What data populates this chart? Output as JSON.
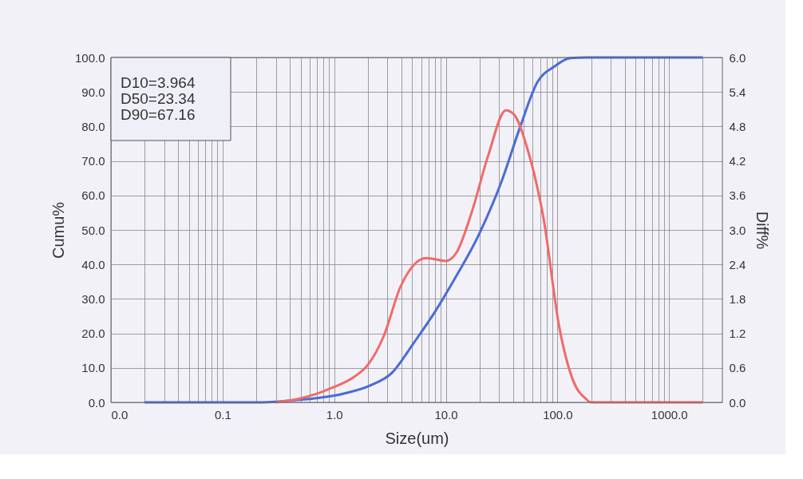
{
  "chart_data": {
    "type": "line",
    "xlabel": "Size(um)",
    "ylabel": "Cumu%",
    "y2label": "Diff%",
    "annotations": [
      "D10=3.964",
      "D50=23.34",
      "D90=67.16"
    ],
    "log": "x",
    "grid": true,
    "marker": "none",
    "line_style": "solid",
    "xlim": [
      0.01,
      3000
    ],
    "xticks": [
      {
        "value": 0.01,
        "label": "0.0"
      },
      {
        "value": 0.02,
        "label": null
      },
      {
        "value": 0.03,
        "label": null
      },
      {
        "value": 0.04,
        "label": null
      },
      {
        "value": 0.05,
        "label": null
      },
      {
        "value": 0.06,
        "label": null
      },
      {
        "value": 0.07,
        "label": null
      },
      {
        "value": 0.08,
        "label": null
      },
      {
        "value": 0.09,
        "label": null
      },
      {
        "value": 0.1,
        "label": "0.1"
      },
      {
        "value": 0.2,
        "label": null
      },
      {
        "value": 0.3,
        "label": null
      },
      {
        "value": 0.4,
        "label": null
      },
      {
        "value": 0.5,
        "label": null
      },
      {
        "value": 0.6,
        "label": null
      },
      {
        "value": 0.7,
        "label": null
      },
      {
        "value": 0.8,
        "label": null
      },
      {
        "value": 0.9,
        "label": null
      },
      {
        "value": 1,
        "label": "1.0"
      },
      {
        "value": 2,
        "label": null
      },
      {
        "value": 3,
        "label": null
      },
      {
        "value": 4,
        "label": null
      },
      {
        "value": 5,
        "label": null
      },
      {
        "value": 6,
        "label": null
      },
      {
        "value": 7,
        "label": null
      },
      {
        "value": 8,
        "label": null
      },
      {
        "value": 9,
        "label": null
      },
      {
        "value": 10,
        "label": "10.0"
      },
      {
        "value": 20,
        "label": null
      },
      {
        "value": 30,
        "label": null
      },
      {
        "value": 40,
        "label": null
      },
      {
        "value": 50,
        "label": null
      },
      {
        "value": 60,
        "label": null
      },
      {
        "value": 70,
        "label": null
      },
      {
        "value": 80,
        "label": null
      },
      {
        "value": 90,
        "label": null
      },
      {
        "value": 100,
        "label": "100.0"
      },
      {
        "value": 200,
        "label": null
      },
      {
        "value": 300,
        "label": null
      },
      {
        "value": 400,
        "label": null
      },
      {
        "value": 500,
        "label": null
      },
      {
        "value": 600,
        "label": null
      },
      {
        "value": 700,
        "label": null
      },
      {
        "value": 800,
        "label": null
      },
      {
        "value": 900,
        "label": null
      },
      {
        "value": 1000,
        "label": "1000.0"
      },
      {
        "value": 2000,
        "label": null
      }
    ],
    "ylim": [
      0,
      100
    ],
    "yticks": [
      {
        "value": 0,
        "label": "0.0"
      },
      {
        "value": 10,
        "label": "10.0"
      },
      {
        "value": 20,
        "label": "20.0"
      },
      {
        "value": 30,
        "label": "30.0"
      },
      {
        "value": 40,
        "label": "40.0"
      },
      {
        "value": 50,
        "label": "50.0"
      },
      {
        "value": 60,
        "label": "60.0"
      },
      {
        "value": 70,
        "label": "70.0"
      },
      {
        "value": 80,
        "label": "80.0"
      },
      {
        "value": 90,
        "label": "90.0"
      },
      {
        "value": 100,
        "label": "100.0"
      }
    ],
    "y2lim": [
      0,
      6
    ],
    "y2ticks": [
      {
        "value": 0,
        "label": "0.0"
      },
      {
        "value": 0.6,
        "label": "0.6"
      },
      {
        "value": 1.2,
        "label": "1.2"
      },
      {
        "value": 1.8,
        "label": "1.8"
      },
      {
        "value": 2.4,
        "label": "2.4"
      },
      {
        "value": 3,
        "label": "3.0"
      },
      {
        "value": 3.6,
        "label": "3.6"
      },
      {
        "value": 4.2,
        "label": "4.2"
      },
      {
        "value": 4.8,
        "label": "4.8"
      },
      {
        "value": 5.4,
        "label": "5.4"
      },
      {
        "value": 6,
        "label": "6.0"
      }
    ],
    "series": [
      {
        "color": "#f06a6a",
        "axis": "y2",
        "x": [
          0.3,
          0.5,
          0.7,
          0.92,
          1.5,
          2.0,
          2.8,
          3.9,
          5.1,
          6.7,
          10,
          12.4,
          17,
          24,
          34.5,
          40.7,
          54,
          75,
          104,
          138,
          180,
          200,
          500,
          2000
        ],
        "values": [
          0,
          0.07,
          0.15,
          0.24,
          0.44,
          0.65,
          1.17,
          2.0,
          2.38,
          2.51,
          2.46,
          2.6,
          3.3,
          4.3,
          5.08,
          5.01,
          4.4,
          3.2,
          1.3,
          0.38,
          0.06,
          0,
          0,
          0
        ]
      },
      {
        "color": "#4a6cd4",
        "x": [
          0.02,
          0.1,
          0.23,
          0.4,
          1.2,
          2.1,
          3.3,
          5.1,
          7.9,
          11.6,
          20,
          31.5,
          46,
          66,
          95,
          130,
          180,
          500,
          2000
        ],
        "values": [
          0,
          0,
          0,
          0.5,
          2.5,
          4.9,
          8.6,
          17,
          26,
          35,
          49,
          64,
          79.6,
          92.8,
          97.5,
          99.8,
          100,
          100,
          100
        ]
      }
    ]
  }
}
